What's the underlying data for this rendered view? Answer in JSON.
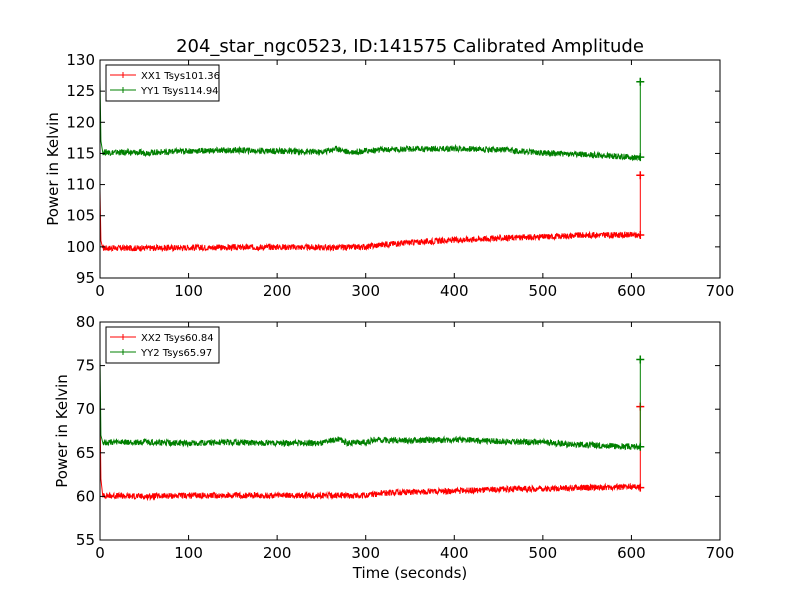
{
  "figure": {
    "title": "204_star_ngc0523, ID:141575 Calibrated Amplitude",
    "xlabel": "Time (seconds)"
  },
  "chart_data": [
    {
      "type": "line",
      "ylabel": "Power in Kelvin",
      "xlim": [
        0,
        700
      ],
      "ylim": [
        95,
        130
      ],
      "xticks": [
        "0",
        "100",
        "200",
        "300",
        "400",
        "500",
        "600",
        "700"
      ],
      "yticks": [
        "95",
        "100",
        "105",
        "110",
        "115",
        "120",
        "125",
        "130"
      ],
      "legend_position": "top-left",
      "series": [
        {
          "name": "XX1 Tsys101.36",
          "color": "#ff0000",
          "points": [
            [
              0,
              109
            ],
            [
              1,
              101
            ],
            [
              3,
              99.8
            ],
            [
              50,
              99.8
            ],
            [
              100,
              99.9
            ],
            [
              150,
              99.9
            ],
            [
              200,
              100
            ],
            [
              250,
              99.9
            ],
            [
              280,
              99.9
            ],
            [
              300,
              100
            ],
            [
              320,
              100.4
            ],
            [
              350,
              100.7
            ],
            [
              400,
              101.1
            ],
            [
              450,
              101.4
            ],
            [
              500,
              101.6
            ],
            [
              550,
              101.9
            ],
            [
              600,
              101.9
            ],
            [
              610,
              101.9
            ],
            [
              610,
              111.5
            ]
          ]
        },
        {
          "name": "YY1 Tsys114.94",
          "color": "#008000",
          "points": [
            [
              0,
              127
            ],
            [
              1,
              117
            ],
            [
              3,
              115.2
            ],
            [
              50,
              115.1
            ],
            [
              100,
              115.4
            ],
            [
              150,
              115.5
            ],
            [
              200,
              115.4
            ],
            [
              250,
              115.2
            ],
            [
              268,
              115.8
            ],
            [
              280,
              115.2
            ],
            [
              300,
              115.4
            ],
            [
              320,
              115.6
            ],
            [
              350,
              115.7
            ],
            [
              400,
              115.8
            ],
            [
              450,
              115.6
            ],
            [
              500,
              115.1
            ],
            [
              550,
              114.8
            ],
            [
              600,
              114.4
            ],
            [
              610,
              114.4
            ],
            [
              610,
              126.5
            ]
          ]
        }
      ]
    },
    {
      "type": "line",
      "ylabel": "Power in Kelvin",
      "xlim": [
        0,
        700
      ],
      "ylim": [
        55,
        80
      ],
      "xticks": [
        "0",
        "100",
        "200",
        "300",
        "400",
        "500",
        "600",
        "700"
      ],
      "yticks": [
        "55",
        "60",
        "65",
        "70",
        "75",
        "80"
      ],
      "legend_position": "top-left",
      "series": [
        {
          "name": "XX2 Tsys60.84",
          "color": "#ff0000",
          "points": [
            [
              0,
              70
            ],
            [
              1,
              62
            ],
            [
              3,
              60.1
            ],
            [
              50,
              60
            ],
            [
              100,
              60.1
            ],
            [
              150,
              60.1
            ],
            [
              200,
              60.1
            ],
            [
              250,
              60.1
            ],
            [
              280,
              60.1
            ],
            [
              300,
              60.1
            ],
            [
              320,
              60.4
            ],
            [
              350,
              60.5
            ],
            [
              400,
              60.6
            ],
            [
              450,
              60.8
            ],
            [
              500,
              60.9
            ],
            [
              550,
              61
            ],
            [
              600,
              61.1
            ],
            [
              610,
              61
            ],
            [
              610,
              70.3
            ]
          ]
        },
        {
          "name": "YY2 Tsys65.97",
          "color": "#008000",
          "points": [
            [
              0,
              76
            ],
            [
              1,
              67
            ],
            [
              3,
              66.2
            ],
            [
              50,
              66.2
            ],
            [
              100,
              66.1
            ],
            [
              150,
              66.2
            ],
            [
              200,
              66.1
            ],
            [
              250,
              66.1
            ],
            [
              268,
              66.6
            ],
            [
              280,
              66.1
            ],
            [
              300,
              66.2
            ],
            [
              310,
              66.5
            ],
            [
              350,
              66.4
            ],
            [
              400,
              66.5
            ],
            [
              450,
              66.3
            ],
            [
              500,
              66.2
            ],
            [
              550,
              65.9
            ],
            [
              600,
              65.7
            ],
            [
              610,
              65.7
            ],
            [
              610,
              75.7
            ]
          ]
        }
      ]
    }
  ]
}
